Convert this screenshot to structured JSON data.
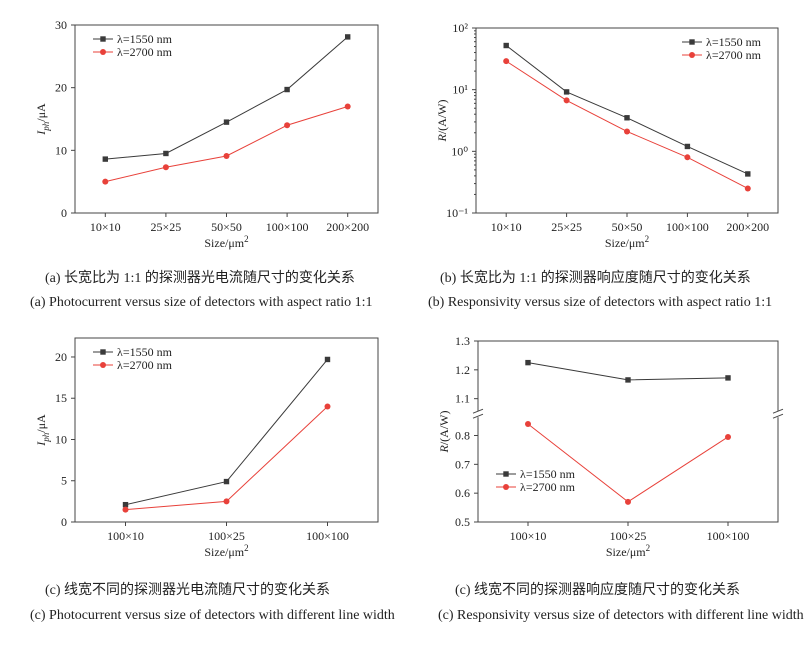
{
  "chart_data": [
    {
      "type": "line",
      "caption_zh": "(a)  长宽比为 1:1 的探测器光电流随尺寸的变化关系",
      "caption_en": "(a) Photocurrent versus size of detectors with aspect ratio 1:1",
      "ylabel": [
        "I",
        "ph",
        "/μA"
      ],
      "xlabel": [
        "Size/μm",
        "2"
      ],
      "categories": [
        "10×10",
        "25×25",
        "50×50",
        "100×100",
        "200×200"
      ],
      "series": [
        {
          "name": "λ=1550 nm",
          "color": "#3a3a3a",
          "marker": "square",
          "values": [
            8.6,
            9.5,
            14.5,
            19.7,
            28.1
          ]
        },
        {
          "name": "λ=2700 nm",
          "color": "#e8413a",
          "marker": "circle",
          "values": [
            5.0,
            7.3,
            9.1,
            14.0,
            17.0
          ]
        }
      ],
      "ylim": [
        0,
        30
      ],
      "yticks": [
        0,
        10,
        20,
        30
      ],
      "legend": "upper left"
    },
    {
      "type": "line",
      "caption_zh": "(b)  长宽比为 1:1 的探测器响应度随尺寸的变化关系",
      "caption_en": "(b) Responsivity versus size of detectors with aspect ratio 1:1",
      "ylabel": [
        "R",
        "/(A/W)"
      ],
      "xlabel": [
        "Size/μm",
        "2"
      ],
      "categories": [
        "10×10",
        "25×25",
        "50×50",
        "100×100",
        "200×200"
      ],
      "series": [
        {
          "name": "λ=1550 nm",
          "color": "#3a3a3a",
          "marker": "square",
          "values": [
            52,
            9.2,
            3.5,
            1.2,
            0.43
          ]
        },
        {
          "name": "λ=2700 nm",
          "color": "#e8413a",
          "marker": "circle",
          "values": [
            29,
            6.7,
            2.1,
            0.8,
            0.25
          ]
        }
      ],
      "ylim": [
        0.1,
        100
      ],
      "log_scale": true,
      "yticks": [
        {
          "value": 0.1,
          "label": "10⁻¹"
        },
        {
          "value": 1,
          "label": "10⁰"
        },
        {
          "value": 10,
          "label": "10¹"
        },
        {
          "value": 100,
          "label": "10²"
        }
      ],
      "legend": "upper right"
    },
    {
      "type": "line",
      "caption_zh": "(c)  线宽不同的探测器光电流随尺寸的变化关系",
      "caption_en": "(c) Photocurrent versus size of detectors with different line width",
      "ylabel": [
        "I",
        "ph",
        "/μA"
      ],
      "xlabel": [
        "Size/μm",
        "2"
      ],
      "categories": [
        "100×10",
        "100×25",
        "100×100"
      ],
      "series": [
        {
          "name": "λ=1550 nm",
          "color": "#3a3a3a",
          "marker": "square",
          "values": [
            2.1,
            4.9,
            19.7
          ]
        },
        {
          "name": "λ=2700 nm",
          "color": "#e8413a",
          "marker": "circle",
          "values": [
            1.5,
            2.5,
            14.0
          ]
        }
      ],
      "ylim": [
        0,
        22.3
      ],
      "yticks": [
        0,
        5,
        10,
        15,
        20
      ],
      "legend": "upper left"
    },
    {
      "type": "line",
      "caption_zh": "(c)  线宽不同的探测器响应度随尺寸的变化关系",
      "caption_en": "(c) Responsivity versus size of detectors with different line width",
      "ylabel": [
        "R",
        "/(A/W)"
      ],
      "xlabel": [
        "Size/μm",
        "2"
      ],
      "categories": [
        "100×10",
        "100×25",
        "100×100"
      ],
      "series": [
        {
          "name": "λ=1550 nm",
          "color": "#3a3a3a",
          "marker": "square",
          "values": [
            1.225,
            1.165,
            1.172
          ]
        },
        {
          "name": "λ=2700 nm",
          "color": "#e8413a",
          "marker": "circle",
          "values": [
            0.84,
            0.57,
            0.795
          ]
        }
      ],
      "ylim": [
        0.5,
        1.3
      ],
      "ybreak": [
        0.86,
        1.06
      ],
      "yticks": [
        0.5,
        0.6,
        0.7,
        0.8,
        1.1,
        1.2,
        1.3
      ],
      "legend": "lower left"
    }
  ]
}
